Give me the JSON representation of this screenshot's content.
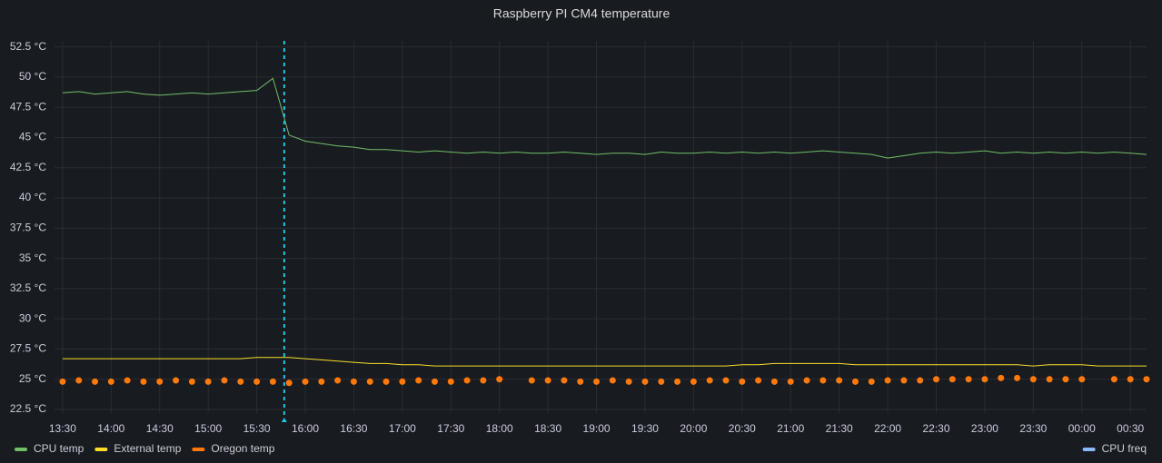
{
  "chart_data": {
    "type": "timeseries",
    "title": "Raspberry PI CM4 temperature",
    "x": [
      "13:30",
      "13:40",
      "13:50",
      "14:00",
      "14:10",
      "14:20",
      "14:30",
      "14:40",
      "14:50",
      "15:00",
      "15:10",
      "15:20",
      "15:30",
      "15:40",
      "15:50",
      "16:00",
      "16:10",
      "16:20",
      "16:30",
      "16:40",
      "16:50",
      "17:00",
      "17:10",
      "17:20",
      "17:30",
      "17:40",
      "17:50",
      "18:00",
      "18:10",
      "18:20",
      "18:30",
      "18:40",
      "18:50",
      "19:00",
      "19:10",
      "19:20",
      "19:30",
      "19:40",
      "19:50",
      "20:00",
      "20:10",
      "20:20",
      "20:30",
      "20:40",
      "20:50",
      "21:00",
      "21:10",
      "21:20",
      "21:30",
      "21:40",
      "21:50",
      "22:00",
      "22:10",
      "22:20",
      "22:30",
      "22:40",
      "22:50",
      "23:00",
      "23:10",
      "23:20",
      "23:30",
      "23:40",
      "23:50",
      "00:00",
      "00:10",
      "00:20",
      "00:30",
      "00:40"
    ],
    "xlim": [
      "13:25",
      "00:40"
    ],
    "xticks": [
      "13:30",
      "14:00",
      "14:30",
      "15:00",
      "15:30",
      "16:00",
      "16:30",
      "17:00",
      "17:30",
      "18:00",
      "18:30",
      "19:00",
      "19:30",
      "20:00",
      "20:30",
      "21:00",
      "21:30",
      "22:00",
      "22:30",
      "23:00",
      "23:30",
      "00:00",
      "00:30"
    ],
    "ylim": [
      22.2,
      53
    ],
    "yticks": [
      {
        "value": 22.5,
        "label": "22.5 °C"
      },
      {
        "value": 25,
        "label": "25 °C"
      },
      {
        "value": 27.5,
        "label": "27.5 °C"
      },
      {
        "value": 30,
        "label": "30 °C"
      },
      {
        "value": 32.5,
        "label": "32.5 °C"
      },
      {
        "value": 35,
        "label": "35 °C"
      },
      {
        "value": 37.5,
        "label": "37.5 °C"
      },
      {
        "value": 40,
        "label": "40 °C"
      },
      {
        "value": 42.5,
        "label": "42.5 °C"
      },
      {
        "value": 45,
        "label": "45 °C"
      },
      {
        "value": 47.5,
        "label": "47.5 °C"
      },
      {
        "value": 50,
        "label": "50 °C"
      },
      {
        "value": 52.5,
        "label": "52.5 °C"
      }
    ],
    "grid": true,
    "annotations": [
      {
        "x": "15:47",
        "color": "#1fc6e6"
      }
    ],
    "series": [
      {
        "name": "CPU temp",
        "color": "#73bf69",
        "style": "line",
        "values": [
          48.7,
          48.8,
          48.6,
          48.7,
          48.8,
          48.6,
          48.5,
          48.6,
          48.7,
          48.6,
          48.7,
          48.8,
          48.9,
          49.9,
          45.2,
          44.7,
          44.5,
          44.3,
          44.2,
          44.0,
          44.0,
          43.9,
          43.8,
          43.9,
          43.8,
          43.7,
          43.8,
          43.7,
          43.8,
          43.7,
          43.7,
          43.8,
          43.7,
          43.6,
          43.7,
          43.7,
          43.6,
          43.8,
          43.7,
          43.7,
          43.8,
          43.7,
          43.8,
          43.7,
          43.8,
          43.7,
          43.8,
          43.9,
          43.8,
          43.7,
          43.6,
          43.3,
          43.5,
          43.7,
          43.8,
          43.7,
          43.8,
          43.9,
          43.7,
          43.8,
          43.7,
          43.8,
          43.7,
          43.8,
          43.7,
          43.8,
          43.7,
          43.6
        ]
      },
      {
        "name": "External temp",
        "color": "#fade2a",
        "style": "line",
        "values": [
          26.7,
          26.7,
          26.7,
          26.7,
          26.7,
          26.7,
          26.7,
          26.7,
          26.7,
          26.7,
          26.7,
          26.7,
          26.8,
          26.8,
          26.8,
          26.7,
          26.6,
          26.5,
          26.4,
          26.3,
          26.3,
          26.2,
          26.2,
          26.1,
          26.1,
          26.1,
          26.1,
          26.1,
          26.1,
          26.1,
          26.1,
          26.1,
          26.1,
          26.1,
          26.1,
          26.1,
          26.1,
          26.1,
          26.1,
          26.1,
          26.1,
          26.1,
          26.2,
          26.2,
          26.3,
          26.3,
          26.3,
          26.3,
          26.3,
          26.2,
          26.2,
          26.2,
          26.2,
          26.2,
          26.2,
          26.2,
          26.2,
          26.2,
          26.2,
          26.2,
          26.1,
          26.2,
          26.2,
          26.2,
          26.1,
          26.1,
          26.1,
          26.1
        ]
      },
      {
        "name": "Oregon temp",
        "color": "#ff780a",
        "style": "points",
        "values": [
          24.8,
          24.9,
          24.8,
          24.8,
          24.9,
          24.8,
          24.8,
          24.9,
          24.8,
          24.8,
          24.9,
          24.8,
          24.8,
          24.8,
          24.7,
          24.8,
          24.8,
          24.9,
          24.8,
          24.8,
          24.8,
          24.8,
          24.9,
          24.8,
          24.8,
          24.9,
          24.9,
          25.0,
          null,
          24.9,
          24.9,
          24.9,
          24.8,
          24.8,
          24.9,
          24.8,
          24.8,
          24.8,
          24.8,
          24.8,
          24.9,
          24.9,
          24.8,
          24.9,
          24.8,
          24.8,
          24.9,
          24.9,
          24.9,
          24.8,
          24.8,
          24.9,
          24.9,
          24.9,
          25.0,
          25.0,
          25.0,
          25.0,
          25.1,
          25.1,
          25.0,
          25.0,
          25.0,
          25.0,
          null,
          25.0,
          25.0,
          25.0
        ]
      },
      {
        "name": "CPU freq",
        "color": "#8ab8ff",
        "style": "line",
        "axis": "y2",
        "values": [
          null,
          null,
          null,
          null,
          null,
          null,
          null,
          null,
          null,
          null,
          null,
          null,
          null,
          null,
          null,
          null,
          null,
          null,
          null,
          null,
          null,
          null,
          null,
          null,
          null,
          null,
          null,
          null,
          null,
          null,
          null,
          null,
          null,
          null,
          null,
          null,
          null,
          null,
          null,
          null,
          null,
          null,
          null,
          null,
          null,
          null,
          null,
          null,
          null,
          null,
          null,
          null,
          null,
          null,
          null,
          null,
          null,
          null,
          null,
          null,
          null,
          null,
          null,
          null,
          null,
          null,
          null,
          null
        ]
      }
    ]
  }
}
